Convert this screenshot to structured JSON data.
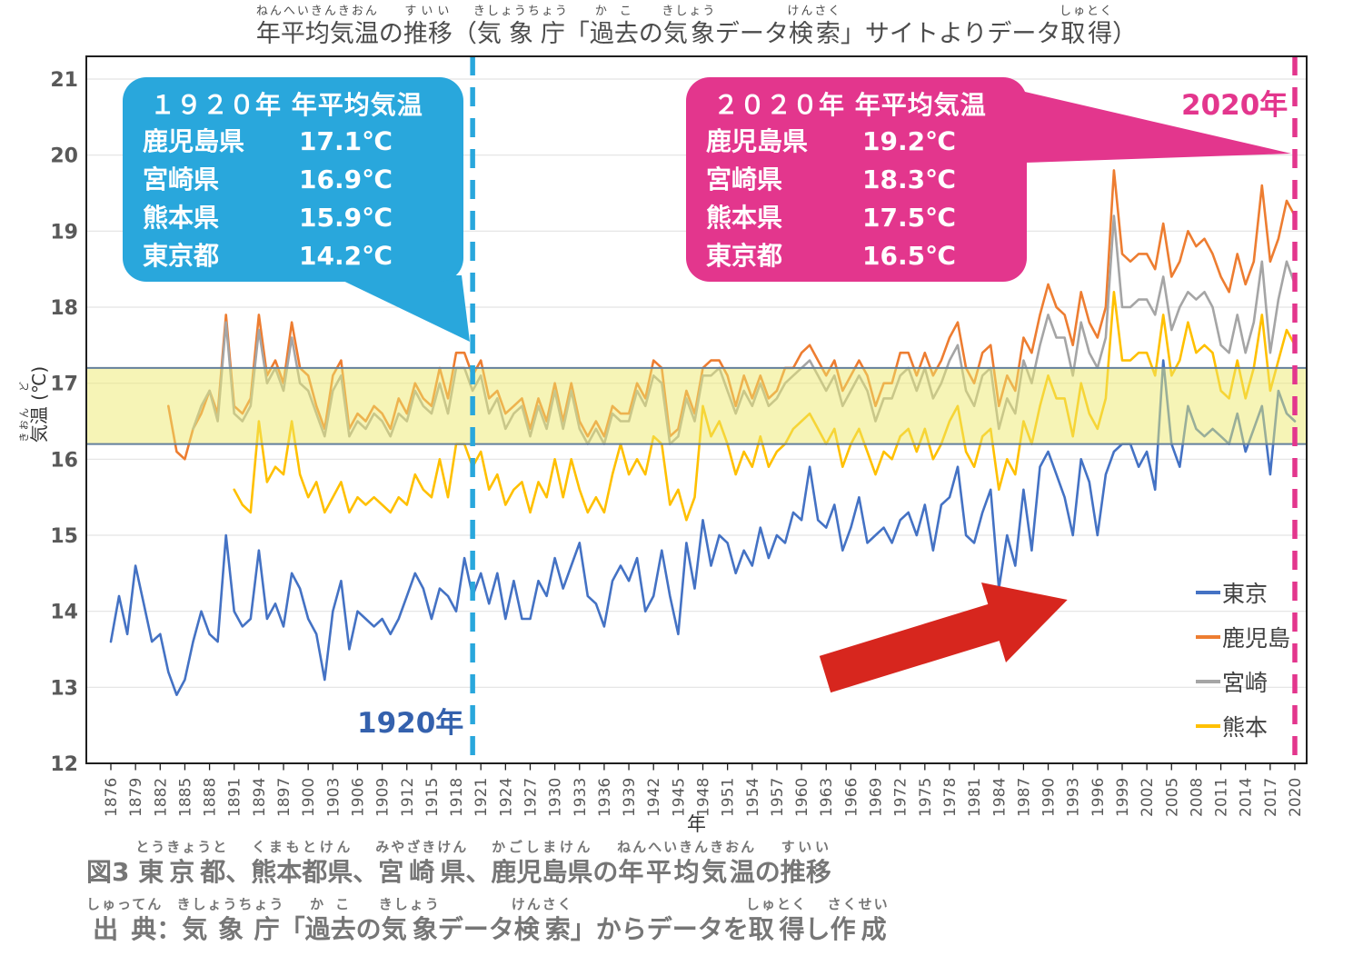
{
  "title": {
    "text": "年平均気温の推移（気象庁「過去の気象データ検索」サイトよりデータ取得）",
    "segments": [
      {
        "t": "年平均気温",
        "r": "ねんへいきんきおん"
      },
      {
        "t": "の",
        "r": ""
      },
      {
        "t": "推移",
        "r": "すいい"
      },
      {
        "t": "（",
        "r": ""
      },
      {
        "t": "気象庁",
        "r": "きしょうちょう"
      },
      {
        "t": "「",
        "r": ""
      },
      {
        "t": "過去",
        "r": "かこ"
      },
      {
        "t": "の",
        "r": ""
      },
      {
        "t": "気象",
        "r": "きしょう"
      },
      {
        "t": "データ",
        "r": ""
      },
      {
        "t": "検索",
        "r": "けんさく"
      },
      {
        "t": "」サイトよりデータ",
        "r": ""
      },
      {
        "t": "取得",
        "r": "しゅとく"
      },
      {
        "t": "）",
        "r": ""
      }
    ]
  },
  "y_axis": {
    "label_segments": [
      {
        "t": "気温",
        "r": "きおん"
      },
      {
        "t": " (℃)",
        "r": "ど"
      }
    ],
    "tick_color": "#595959"
  },
  "x_axis": {
    "label": "年",
    "tick_color": "#595959"
  },
  "callout_1920": {
    "title": "１９２０年 年平均気温",
    "bg": "#29a7dc",
    "rows": [
      {
        "name": "鹿児島県",
        "value": "17.1℃"
      },
      {
        "name": "宮崎県",
        "value": "16.9℃"
      },
      {
        "name": "熊本県",
        "value": "15.9℃"
      },
      {
        "name": "東京都",
        "value": "14.2℃"
      }
    ]
  },
  "callout_2020": {
    "title": "２０２０年 年平均気温",
    "bg": "#e3368d",
    "rows": [
      {
        "name": "鹿児島県",
        "value": "19.2℃"
      },
      {
        "name": "宮崎県",
        "value": "18.3℃"
      },
      {
        "name": "熊本県",
        "value": "17.5℃"
      },
      {
        "name": "東京都",
        "value": "16.5℃"
      }
    ]
  },
  "annotations": {
    "label_1920": "1920年",
    "label_1920_color": "#3461ad",
    "label_2020": "2020年",
    "label_2020_color": "#e3368d",
    "arrow_color": "#d7261e"
  },
  "legend": {
    "items": [
      {
        "label": "東京",
        "color": "#4472c4"
      },
      {
        "label": "鹿児島",
        "color": "#ed7d31"
      },
      {
        "label": "宮崎",
        "color": "#a5a5a5"
      },
      {
        "label": "熊本",
        "color": "#ffc000"
      }
    ]
  },
  "caption": {
    "line1_text": "図3 東京都、熊本都県、宮崎県、鹿児島県の年平均気温の推移",
    "line1_segments": [
      {
        "t": "図3 ",
        "r": ""
      },
      {
        "t": "東京都",
        "r": "とうきょうと"
      },
      {
        "t": "、",
        "r": ""
      },
      {
        "t": "熊本都県",
        "r": "くまもとけん"
      },
      {
        "t": "、",
        "r": ""
      },
      {
        "t": "宮崎県",
        "r": "みやざきけん"
      },
      {
        "t": "、",
        "r": ""
      },
      {
        "t": "鹿児島県",
        "r": "かごしまけん"
      },
      {
        "t": "の",
        "r": ""
      },
      {
        "t": "年平均気温",
        "r": "ねんへいきんきおん"
      },
      {
        "t": "の",
        "r": ""
      },
      {
        "t": "推移",
        "r": "すいい"
      }
    ],
    "line2_text": "出典：気象庁「過去の気象データ検索」からデータを取得し作成",
    "line2_segments": [
      {
        "t": "出典",
        "r": "しゅってん"
      },
      {
        "t": "：",
        "r": ""
      },
      {
        "t": "気象庁",
        "r": "きしょうちょう"
      },
      {
        "t": "「",
        "r": ""
      },
      {
        "t": "過去",
        "r": "かこ"
      },
      {
        "t": "の",
        "r": ""
      },
      {
        "t": "気象",
        "r": "きしょう"
      },
      {
        "t": "データ",
        "r": ""
      },
      {
        "t": "検索",
        "r": "けんさく"
      },
      {
        "t": "」からデータを",
        "r": ""
      },
      {
        "t": "取得",
        "r": "しゅとく"
      },
      {
        "t": "し",
        "r": ""
      },
      {
        "t": "作成",
        "r": "さくせい"
      }
    ]
  },
  "chart_data": {
    "type": "line",
    "title": "年平均気温の推移（気象庁「過去の気象データ検索」サイトよりデータ取得）",
    "xlabel": "年",
    "ylabel": "気温 (℃)",
    "x_start": 1876,
    "x_end": 2020,
    "ylim": [
      12,
      21
    ],
    "grid": true,
    "grid_color": "#e3e3e3",
    "legend_position": "inside-right",
    "y_ticks": [
      12,
      13,
      14,
      15,
      16,
      17,
      18,
      19,
      20,
      21
    ],
    "x_ticks": [
      1876,
      1879,
      1882,
      1885,
      1888,
      1891,
      1894,
      1897,
      1900,
      1903,
      1906,
      1909,
      1912,
      1915,
      1918,
      1921,
      1924,
      1927,
      1930,
      1933,
      1936,
      1939,
      1942,
      1945,
      1948,
      1951,
      1954,
      1957,
      1960,
      1963,
      1966,
      1969,
      1972,
      1975,
      1978,
      1981,
      1984,
      1987,
      1990,
      1993,
      1996,
      1999,
      2002,
      2005,
      2008,
      2011,
      2014,
      2017,
      2020
    ],
    "highlight_band": {
      "from": 16.2,
      "to": 17.2,
      "fill": "#eeea6d",
      "opacity": 0.5,
      "border_color": "#64809c"
    },
    "vlines": [
      {
        "x": 1920,
        "color": "#29a7dc",
        "label": "1920年"
      },
      {
        "x": 2020,
        "color": "#e3368d",
        "label": "2020年"
      }
    ],
    "series": [
      {
        "name": "東京",
        "key": "tokyo",
        "color": "#4472c4",
        "start_year": 1876,
        "values": [
          13.6,
          14.2,
          13.7,
          14.6,
          14.1,
          13.6,
          13.7,
          13.2,
          12.9,
          13.1,
          13.6,
          14.0,
          13.7,
          13.6,
          15.0,
          14.0,
          13.8,
          13.9,
          14.8,
          13.9,
          14.1,
          13.8,
          14.5,
          14.3,
          13.9,
          13.7,
          13.1,
          14.0,
          14.4,
          13.5,
          14.0,
          13.9,
          13.8,
          13.9,
          13.7,
          13.9,
          14.2,
          14.5,
          14.3,
          13.9,
          14.3,
          14.2,
          14.0,
          14.7,
          14.2,
          14.5,
          14.1,
          14.5,
          13.9,
          14.4,
          13.9,
          13.9,
          14.4,
          14.2,
          14.7,
          14.3,
          14.6,
          14.9,
          14.2,
          14.1,
          13.8,
          14.4,
          14.6,
          14.4,
          14.7,
          14.0,
          14.2,
          14.8,
          14.2,
          13.7,
          14.9,
          14.3,
          15.2,
          14.6,
          15.0,
          14.9,
          14.5,
          14.8,
          14.6,
          15.1,
          14.7,
          15.0,
          14.9,
          15.3,
          15.2,
          15.9,
          15.2,
          15.1,
          15.4,
          14.8,
          15.1,
          15.5,
          14.9,
          15.0,
          15.1,
          14.9,
          15.2,
          15.3,
          15.0,
          15.4,
          14.8,
          15.4,
          15.5,
          15.9,
          15.0,
          14.9,
          15.3,
          15.6,
          14.3,
          15.0,
          14.6,
          15.6,
          14.8,
          15.9,
          16.1,
          15.8,
          15.5,
          15.0,
          16.0,
          15.7,
          15.0,
          15.8,
          16.1,
          16.2,
          16.2,
          15.9,
          16.1,
          15.6,
          17.3,
          16.2,
          15.9,
          16.7,
          16.4,
          16.3,
          16.4,
          16.3,
          16.2,
          16.6,
          16.1,
          16.4,
          16.7,
          15.8,
          16.9,
          16.6,
          16.5
        ]
      },
      {
        "name": "鹿児島",
        "key": "kagoshima",
        "color": "#ed7d31",
        "start_year": 1883,
        "values": [
          16.7,
          16.1,
          16.0,
          16.4,
          16.6,
          16.9,
          16.6,
          17.9,
          16.7,
          16.6,
          16.8,
          17.9,
          17.1,
          17.3,
          17.0,
          17.8,
          17.2,
          17.1,
          16.7,
          16.4,
          17.1,
          17.3,
          16.4,
          16.6,
          16.5,
          16.7,
          16.6,
          16.4,
          16.8,
          16.6,
          17.0,
          16.8,
          16.7,
          17.2,
          16.8,
          17.4,
          17.4,
          17.1,
          17.3,
          16.8,
          16.9,
          16.6,
          16.7,
          16.8,
          16.4,
          16.8,
          16.5,
          17.0,
          16.5,
          17.0,
          16.5,
          16.3,
          16.5,
          16.3,
          16.7,
          16.6,
          16.6,
          17.0,
          16.8,
          17.3,
          17.2,
          16.3,
          16.4,
          16.9,
          16.6,
          17.2,
          17.3,
          17.3,
          17.1,
          16.7,
          17.1,
          16.8,
          17.1,
          16.8,
          16.9,
          17.2,
          17.2,
          17.4,
          17.5,
          17.3,
          17.1,
          17.3,
          16.9,
          17.1,
          17.3,
          17.1,
          16.7,
          17.0,
          17.0,
          17.4,
          17.4,
          17.1,
          17.4,
          17.1,
          17.3,
          17.6,
          17.8,
          17.2,
          17.0,
          17.4,
          17.5,
          16.7,
          17.1,
          16.9,
          17.6,
          17.4,
          17.9,
          18.3,
          18.0,
          17.9,
          17.5,
          18.2,
          17.8,
          17.6,
          18.0,
          19.8,
          18.7,
          18.6,
          18.7,
          18.7,
          18.5,
          19.1,
          18.4,
          18.6,
          19.0,
          18.8,
          18.9,
          18.7,
          18.4,
          18.2,
          18.7,
          18.3,
          18.6,
          19.6,
          18.6,
          18.9,
          19.4,
          19.2
        ]
      },
      {
        "name": "宮崎",
        "key": "miyazaki",
        "color": "#a5a5a5",
        "start_year": 1886,
        "values": [
          16.4,
          16.7,
          16.9,
          16.5,
          17.8,
          16.6,
          16.5,
          16.7,
          17.7,
          17.0,
          17.2,
          16.9,
          17.6,
          17.0,
          16.9,
          16.6,
          16.3,
          16.9,
          17.1,
          16.3,
          16.5,
          16.4,
          16.6,
          16.5,
          16.3,
          16.6,
          16.5,
          16.9,
          16.7,
          16.6,
          17.0,
          16.6,
          17.2,
          17.2,
          16.9,
          17.1,
          16.6,
          16.8,
          16.4,
          16.6,
          16.7,
          16.3,
          16.7,
          16.4,
          16.9,
          16.4,
          16.9,
          16.4,
          16.2,
          16.4,
          16.2,
          16.6,
          16.5,
          16.5,
          16.9,
          16.7,
          17.1,
          17.0,
          16.2,
          16.3,
          16.8,
          16.5,
          17.1,
          17.1,
          17.2,
          16.9,
          16.6,
          16.9,
          16.7,
          17.0,
          16.7,
          16.8,
          17.0,
          17.1,
          17.2,
          17.3,
          17.1,
          16.9,
          17.1,
          16.7,
          16.9,
          17.1,
          16.9,
          16.5,
          16.8,
          16.8,
          17.1,
          17.2,
          16.9,
          17.2,
          16.8,
          17.0,
          17.3,
          17.5,
          16.9,
          16.7,
          17.1,
          17.2,
          16.4,
          16.8,
          16.6,
          17.3,
          17.0,
          17.5,
          17.9,
          17.6,
          17.6,
          17.1,
          17.8,
          17.4,
          17.2,
          17.6,
          19.2,
          18.0,
          18.0,
          18.1,
          18.1,
          17.9,
          18.4,
          17.7,
          18.0,
          18.2,
          18.1,
          18.2,
          18.0,
          17.5,
          17.4,
          17.9,
          17.4,
          17.8,
          18.6,
          17.4,
          18.1,
          18.6,
          18.3
        ]
      },
      {
        "name": "熊本",
        "key": "kumamoto",
        "color": "#ffc000",
        "start_year": 1891,
        "values": [
          15.6,
          15.4,
          15.3,
          16.5,
          15.7,
          15.9,
          15.8,
          16.5,
          15.8,
          15.5,
          15.7,
          15.3,
          15.5,
          15.7,
          15.3,
          15.5,
          15.4,
          15.5,
          15.4,
          15.3,
          15.5,
          15.4,
          15.8,
          15.6,
          15.5,
          16.0,
          15.5,
          16.2,
          16.2,
          15.9,
          16.1,
          15.6,
          15.8,
          15.4,
          15.6,
          15.7,
          15.3,
          15.7,
          15.5,
          16.0,
          15.5,
          16.0,
          15.6,
          15.3,
          15.5,
          15.3,
          15.8,
          16.2,
          15.8,
          16.0,
          15.8,
          16.3,
          16.2,
          15.4,
          15.6,
          15.2,
          15.5,
          16.7,
          16.3,
          16.5,
          16.2,
          15.8,
          16.1,
          15.9,
          16.3,
          15.9,
          16.1,
          16.2,
          16.4,
          16.5,
          16.6,
          16.4,
          16.2,
          16.4,
          15.9,
          16.2,
          16.4,
          16.1,
          15.8,
          16.1,
          16.0,
          16.3,
          16.4,
          16.1,
          16.4,
          16.0,
          16.2,
          16.5,
          16.7,
          16.1,
          15.9,
          16.3,
          16.4,
          15.6,
          16.0,
          15.8,
          16.5,
          16.2,
          16.7,
          17.1,
          16.8,
          16.8,
          16.3,
          17.0,
          16.6,
          16.4,
          16.8,
          18.2,
          17.3,
          17.3,
          17.4,
          17.4,
          17.1,
          17.9,
          17.1,
          17.3,
          17.8,
          17.4,
          17.5,
          17.4,
          16.9,
          16.8,
          17.3,
          16.8,
          17.2,
          17.9,
          16.9,
          17.3,
          17.7,
          17.5
        ]
      }
    ]
  }
}
